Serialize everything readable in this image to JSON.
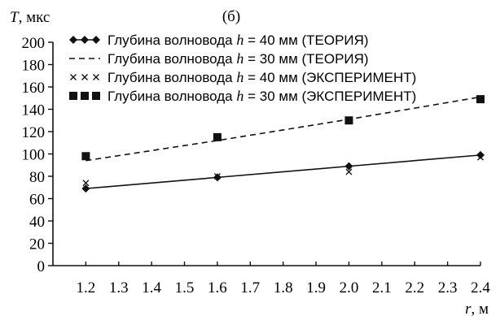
{
  "chart_data": {
    "type": "line",
    "subtitle": "(б)",
    "ylabel": {
      "var": "T",
      "unit": ", мкс"
    },
    "xlabel": {
      "var": "r",
      "unit": ", м"
    },
    "xlim": [
      1.1,
      2.4
    ],
    "ylim": [
      0,
      200
    ],
    "xticks": [
      "1.2",
      "1.3",
      "1.4",
      "1.5",
      "1.6",
      "1.7",
      "1.8",
      "1.9",
      "2.0",
      "2.1",
      "2.2",
      "2.3",
      "2.4"
    ],
    "yticks": [
      "0",
      "20",
      "40",
      "60",
      "80",
      "100",
      "120",
      "140",
      "160",
      "180",
      "200"
    ],
    "grid": false,
    "legend_position": "top-left",
    "series": [
      {
        "name": "Глубина волновода h = 40 мм (ТЕОРИЯ)",
        "legend": {
          "pre": "Глубина волновода ",
          "var": "h",
          "post": " = 40 мм (ТЕОРИЯ)"
        },
        "style": "solid-diamond",
        "color": "#111111",
        "x": [
          1.2,
          1.6,
          2.0,
          2.4
        ],
        "y": [
          69,
          79,
          89,
          99
        ]
      },
      {
        "name": "Глубина волновода h = 30 мм (ТЕОРИЯ)",
        "legend": {
          "pre": "Глубина волновода ",
          "var": "h",
          "post": " = 30 мм (ТЕОРИЯ)"
        },
        "style": "dashed",
        "color": "#111111",
        "x": [
          1.2,
          1.6,
          2.0,
          2.4
        ],
        "y": [
          94,
          112,
          131,
          151
        ]
      },
      {
        "name": "Глубина волновода h = 40 мм (ЭКСПЕРИМЕНТ)",
        "legend": {
          "pre": "Глубина волновода ",
          "var": "h",
          "post": " = 40 мм (ЭКСПЕРИМЕНТ)"
        },
        "style": "cross",
        "color": "#111111",
        "x": [
          1.2,
          1.6,
          2.0,
          2.4
        ],
        "y": [
          74,
          80,
          84,
          97
        ]
      },
      {
        "name": "Глубина волновода h = 30 мм (ЭКСПЕРИМЕНТ)",
        "legend": {
          "pre": "Глубина волновода ",
          "var": "h",
          "post": " = 30 мм (ЭКСПЕРИМЕНТ)"
        },
        "style": "square",
        "color": "#111111",
        "x": [
          1.2,
          1.6,
          2.0,
          2.4
        ],
        "y": [
          98,
          115,
          130,
          149
        ]
      }
    ]
  }
}
